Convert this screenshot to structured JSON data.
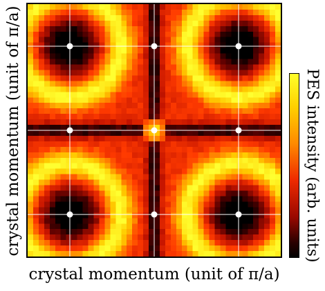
{
  "chart_data": {
    "type": "heatmap",
    "title": "",
    "xlabel": "crystal momentum (unit of π/a)",
    "ylabel": "crystal momentum (unit of π/a)",
    "colorbar_label": "PES intensity (arb. units)",
    "colormap": [
      "#000000",
      "#5a0000",
      "#c41400",
      "#ff3a00",
      "#ff8a00",
      "#ffcc00",
      "#ffff30"
    ],
    "xlim": [
      -0.5,
      2.5
    ],
    "ylim": [
      -0.5,
      2.5
    ],
    "grid": true,
    "grid_x": [
      0,
      1,
      2
    ],
    "grid_y": [
      0,
      1,
      2
    ],
    "high_symmetry_points": [
      {
        "x": 0,
        "y": 0
      },
      {
        "x": 1,
        "y": 0
      },
      {
        "x": 2,
        "y": 0
      },
      {
        "x": 0,
        "y": 1
      },
      {
        "x": 1,
        "y": 1
      },
      {
        "x": 2,
        "y": 1
      },
      {
        "x": 0,
        "y": 2
      },
      {
        "x": 1,
        "y": 2
      },
      {
        "x": 2,
        "y": 2
      }
    ],
    "dark_pockets_centers": [
      {
        "x": 0,
        "y": 0
      },
      {
        "x": 2,
        "y": 0
      },
      {
        "x": 0,
        "y": 2
      },
      {
        "x": 2,
        "y": 2
      }
    ],
    "bright_ring_radius": 0.6,
    "dark_lines": [
      "x = 1",
      "y = 1"
    ],
    "bright_center": {
      "x": 1,
      "y": 1
    }
  }
}
